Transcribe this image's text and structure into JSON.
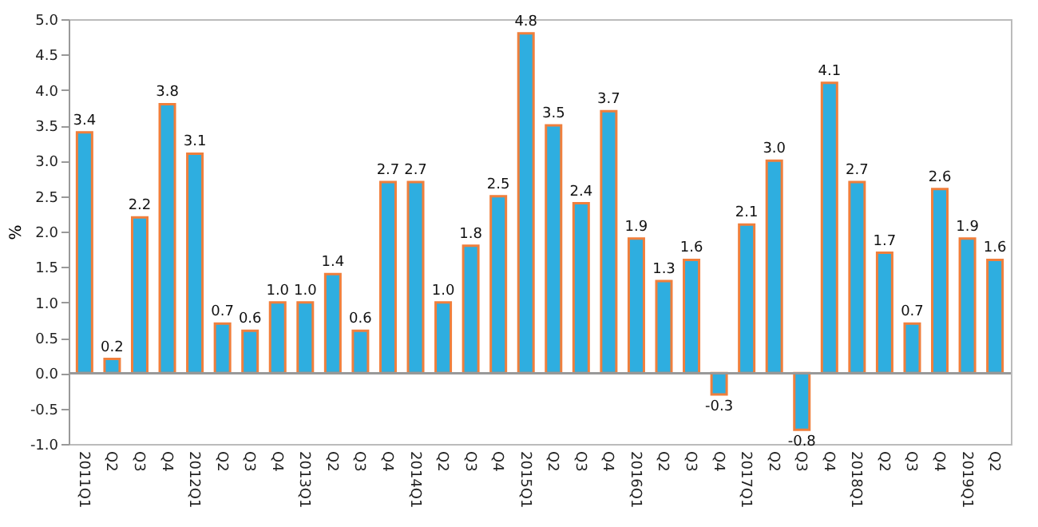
{
  "chart_data": {
    "type": "bar",
    "ylabel": "%",
    "categories": [
      "2011Q1",
      "Q2",
      "Q3",
      "Q4",
      "2012Q1",
      "Q2",
      "Q3",
      "Q4",
      "2013Q1",
      "Q2",
      "Q3",
      "Q4",
      "2014Q1",
      "Q2",
      "Q3",
      "Q4",
      "2015Q1",
      "Q2",
      "Q3",
      "Q4",
      "2016Q1",
      "Q2",
      "Q3",
      "Q4",
      "2017Q1",
      "Q2",
      "Q3",
      "Q4",
      "2018Q1",
      "Q2",
      "Q3",
      "Q4",
      "2019Q1",
      "Q2"
    ],
    "values": [
      3.4,
      0.2,
      2.2,
      3.8,
      3.1,
      0.7,
      0.6,
      1.0,
      1.0,
      1.4,
      0.6,
      2.7,
      2.7,
      1.0,
      1.8,
      2.5,
      4.8,
      3.5,
      2.4,
      3.7,
      1.9,
      1.3,
      1.6,
      -0.3,
      2.1,
      3.0,
      -0.8,
      4.1,
      2.7,
      1.7,
      0.7,
      2.6,
      1.9,
      1.6
    ],
    "value_labels": [
      "3.4",
      "0.2",
      "2.2",
      "3.8",
      "3.1",
      "0.7",
      "0.6",
      "1.0",
      "1.0",
      "1.4",
      "0.6",
      "2.7",
      "2.7",
      "1.0",
      "1.8",
      "2.5",
      "4.8",
      "3.5",
      "2.4",
      "3.7",
      "1.9",
      "1.3",
      "1.6",
      "-0.3",
      "2.1",
      "3.0",
      "-0.8",
      "4.1",
      "2.7",
      "1.7",
      "0.7",
      "2.6",
      "1.9",
      "1.6"
    ],
    "color": "#2eaee0",
    "ylim": [
      -1.0,
      5.0
    ],
    "yticks": [
      {
        "value": -1,
        "label": "-1.0"
      },
      {
        "value": -0.5,
        "label": "-0.5"
      },
      {
        "value": 0,
        "label": "0.0"
      },
      {
        "value": 0.5,
        "label": "0.5"
      },
      {
        "value": 1,
        "label": "1.0"
      },
      {
        "value": 1.5,
        "label": "1.5"
      },
      {
        "value": 2,
        "label": "2.0"
      },
      {
        "value": 2.5,
        "label": "2.5"
      },
      {
        "value": 3,
        "label": "3.0"
      },
      {
        "value": 3.5,
        "label": "3.5"
      },
      {
        "value": 4,
        "label": "4.0"
      },
      {
        "value": 4.5,
        "label": "4.5"
      },
      {
        "value": 5,
        "label": "5.0"
      }
    ]
  }
}
